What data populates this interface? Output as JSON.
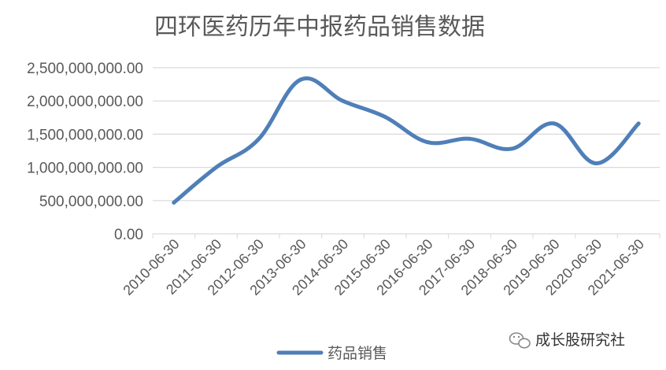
{
  "chart_data": {
    "type": "line",
    "title": "四环医药历年中报药品销售数据",
    "categories": [
      "2010-06-30",
      "2011-06-30",
      "2012-06-30",
      "2013-06-30",
      "2014-06-30",
      "2015-06-30",
      "2016-06-30",
      "2017-06-30",
      "2018-06-30",
      "2019-06-30",
      "2020-06-30",
      "2021-06-30"
    ],
    "series": [
      {
        "name": "药品销售",
        "values": [
          470000000,
          1000000000,
          1420000000,
          2320000000,
          2000000000,
          1760000000,
          1380000000,
          1430000000,
          1280000000,
          1660000000,
          1060000000,
          1660000000
        ]
      }
    ],
    "ylim": [
      0,
      2500000000
    ],
    "yticks": [
      0,
      500000000,
      1000000000,
      1500000000,
      2000000000,
      2500000000
    ],
    "ytick_labels": [
      "0.00",
      "500,000,000.00",
      "1,000,000,000.00",
      "1,500,000,000.00",
      "2,000,000,000.00",
      "2,500,000,000.00"
    ],
    "grid": true,
    "legend_position": "bottom",
    "line_color": "#4f7fb8",
    "grid_color": "#d9d9d9"
  },
  "watermark": {
    "text": "成长股研究社",
    "icon": "wechat-icon"
  }
}
